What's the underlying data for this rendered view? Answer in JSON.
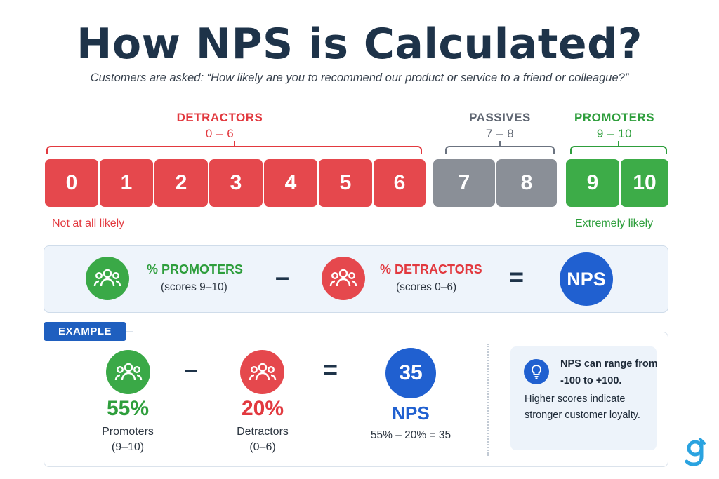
{
  "title": "How NPS is Calculated?",
  "subtitle": "Customers are asked: “How likely are you to recommend our product or service to a friend or colleague?”",
  "groups": {
    "detractors": {
      "label": "DETRACTORS",
      "range": "0 – 6"
    },
    "passives": {
      "label": "PASSIVES",
      "range": "7 – 8"
    },
    "promoters": {
      "label": "PROMOTERS",
      "range": "9 – 10"
    }
  },
  "scores": [
    "0",
    "1",
    "2",
    "3",
    "4",
    "5",
    "6",
    "7",
    "8",
    "9",
    "10"
  ],
  "scale": {
    "low": "Not at all likely",
    "high": "Extremely likely"
  },
  "formula": {
    "promoters_label": "% PROMOTERS",
    "promoters_sub": "(scores 9–10)",
    "minus": "–",
    "detractors_label": "% DETRACTORS",
    "detractors_sub": "(scores 0–6)",
    "equals": "=",
    "result": "NPS"
  },
  "example": {
    "tab": "EXAMPLE",
    "promoters_pct": "55%",
    "promoters_label": "Promoters",
    "promoters_range": "(9–10)",
    "minus": "–",
    "detractors_pct": "20%",
    "detractors_label": "Detractors",
    "detractors_range": "(0–6)",
    "equals": "=",
    "nps_value": "35",
    "nps_label": "NPS",
    "calc": "55% – 20% = 35"
  },
  "info": {
    "bold": "NPS can range from -100 to +100.",
    "text": "Higher scores indicate stronger customer loyalty."
  },
  "colors": {
    "detractor": "#e5484d",
    "passive": "#8a8f97",
    "promoter": "#3dac48",
    "accent": "#2060d0",
    "title": "#1e3349"
  },
  "icons": {
    "group": "people-group-icon",
    "lightbulb": "lightbulb-icon",
    "logo": "brand-logo-icon"
  }
}
